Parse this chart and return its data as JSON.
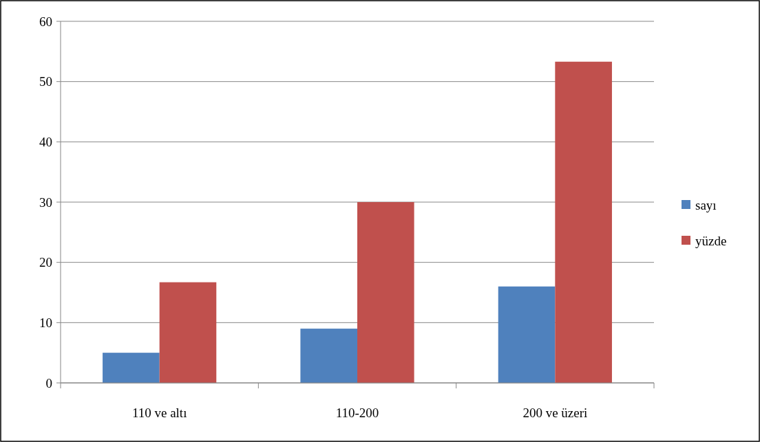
{
  "chart_data": {
    "type": "bar",
    "categories": [
      "110 ve altı",
      "110-200",
      "200 ve üzeri"
    ],
    "series": [
      {
        "name": "sayı",
        "color": "#4f81bd",
        "values": [
          5,
          9,
          16
        ]
      },
      {
        "name": "yüzde",
        "color": "#c0504d",
        "values": [
          16.7,
          30,
          53.3
        ]
      }
    ],
    "ylim": [
      0,
      60
    ],
    "yticks": [
      0,
      10,
      20,
      30,
      40,
      50,
      60
    ],
    "grid": "y",
    "legend": "right"
  }
}
